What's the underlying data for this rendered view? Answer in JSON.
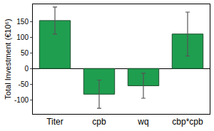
{
  "chart_data": {
    "type": "bar",
    "y_label": "Total Investment (€10⁶)",
    "categories": [
      "Titer",
      "cpb",
      "wq",
      "cbp*cpb"
    ],
    "values": [
      153,
      -82,
      -55,
      110
    ],
    "errors": [
      43,
      45,
      40,
      70
    ],
    "color": "#1f9e4f",
    "ylim": [
      -145,
      205
    ],
    "yticks": [
      -100,
      -50,
      0,
      50,
      100,
      150
    ],
    "grid": false
  }
}
